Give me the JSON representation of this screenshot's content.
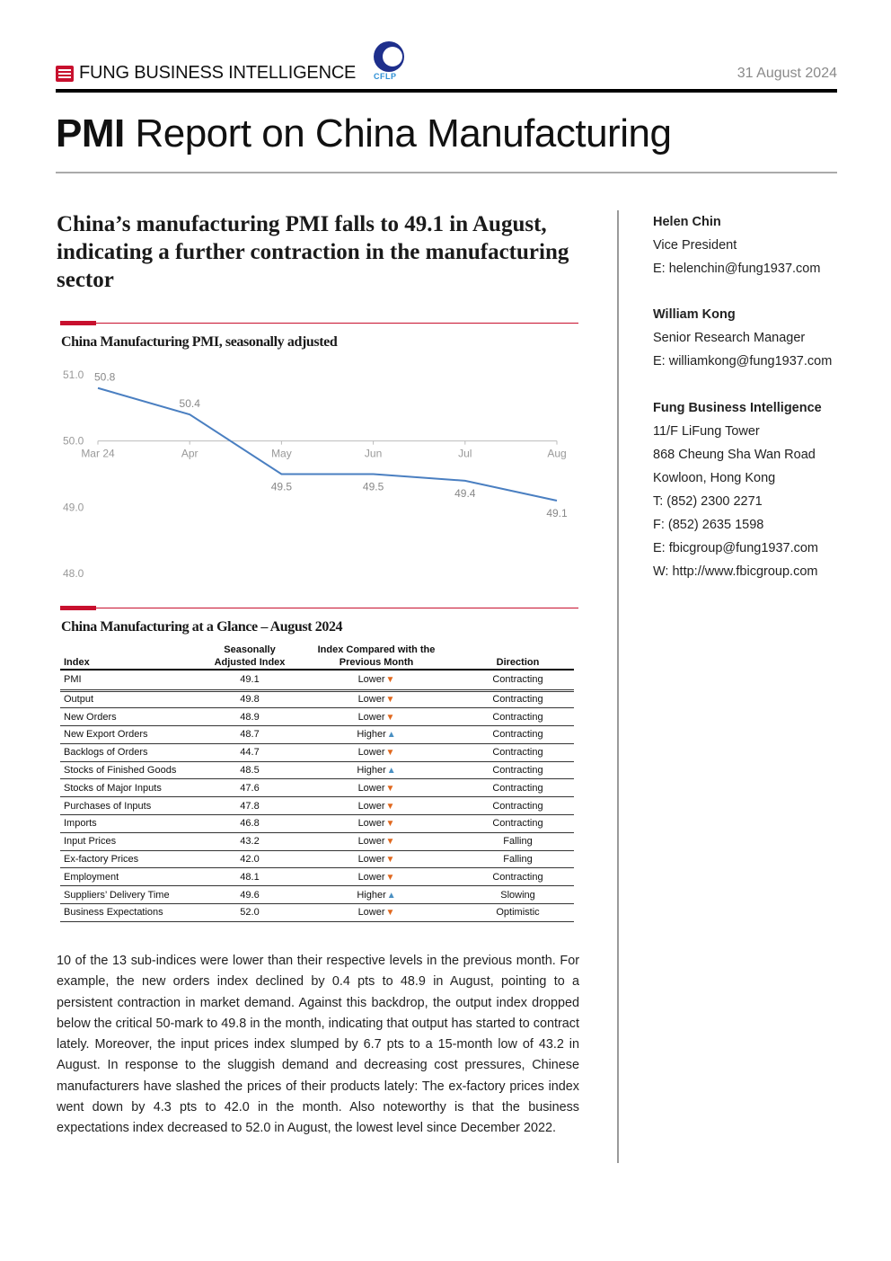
{
  "header": {
    "brand": "FUNG BUSINESS INTELLIGENCE",
    "partner_logo_text": "CFLP",
    "date": "31 August 2024"
  },
  "title": {
    "bold": "PMI",
    "rest": " Report on China Manufacturing"
  },
  "headline": "China’s manufacturing PMI falls to 49.1 in August, indicating a further contraction in the manufacturing sector",
  "chart_section_title": "China Manufacturing PMI, seasonally adjusted",
  "chart_data": {
    "type": "line",
    "title": "China Manufacturing PMI, seasonally adjusted",
    "categories": [
      "Mar 24",
      "Apr",
      "May",
      "Jun",
      "Jul",
      "Aug"
    ],
    "values": [
      50.8,
      50.4,
      49.5,
      49.5,
      49.4,
      49.1
    ],
    "data_labels": [
      "50.8",
      "50.4",
      "49.5",
      "49.5",
      "49.4",
      "49.1"
    ],
    "y_ticks": [
      "51.0",
      "50.0",
      "49.0",
      "48.0"
    ],
    "ylim": [
      48.0,
      51.0
    ],
    "x_axis_at": 50.0,
    "grid": false,
    "legend": "none",
    "color": "#4a7fc1"
  },
  "table_section_title": "China Manufacturing at a Glance – August 2024",
  "table": {
    "headers": {
      "index": "Index",
      "sa_line1": "Seasonally",
      "sa_line2": "Adjusted Index",
      "cmp_line1": "Index Compared with the",
      "cmp_line2": "Previous Month",
      "direction": "Direction"
    },
    "arrow_colors": {
      "down": "#e0681e",
      "up": "#4a90c2"
    },
    "rows": [
      {
        "index": "PMI",
        "value": "49.1",
        "compare": "Lower",
        "arrow": "down",
        "direction": "Contracting"
      },
      {
        "index": "Output",
        "value": "49.8",
        "compare": "Lower",
        "arrow": "down",
        "direction": "Contracting"
      },
      {
        "index": "New Orders",
        "value": "48.9",
        "compare": "Lower",
        "arrow": "down",
        "direction": "Contracting"
      },
      {
        "index": "New Export Orders",
        "value": "48.7",
        "compare": "Higher",
        "arrow": "up",
        "direction": "Contracting"
      },
      {
        "index": "Backlogs of Orders",
        "value": "44.7",
        "compare": "Lower",
        "arrow": "down",
        "direction": "Contracting"
      },
      {
        "index": "Stocks of Finished Goods",
        "value": "48.5",
        "compare": "Higher",
        "arrow": "up",
        "direction": "Contracting"
      },
      {
        "index": "Stocks of Major Inputs",
        "value": "47.6",
        "compare": "Lower",
        "arrow": "down",
        "direction": "Contracting"
      },
      {
        "index": "Purchases of Inputs",
        "value": "47.8",
        "compare": "Lower",
        "arrow": "down",
        "direction": "Contracting"
      },
      {
        "index": "Imports",
        "value": "46.8",
        "compare": "Lower",
        "arrow": "down",
        "direction": "Contracting"
      },
      {
        "index": "Input Prices",
        "value": "43.2",
        "compare": "Lower",
        "arrow": "down",
        "direction": "Falling"
      },
      {
        "index": "Ex-factory Prices",
        "value": "42.0",
        "compare": "Lower",
        "arrow": "down",
        "direction": "Falling"
      },
      {
        "index": "Employment",
        "value": "48.1",
        "compare": "Lower",
        "arrow": "down",
        "direction": "Contracting"
      },
      {
        "index": "Suppliers’ Delivery Time",
        "value": "49.6",
        "compare": "Higher",
        "arrow": "up",
        "direction": "Slowing"
      },
      {
        "index": "Business Expectations",
        "value": "52.0",
        "compare": "Lower",
        "arrow": "down",
        "direction": "Optimistic"
      }
    ]
  },
  "paragraph": "10 of the 13 sub-indices were lower than their respective levels in the previous month. For example, the new orders index declined by 0.4 pts to 48.9 in August, pointing to a persistent contraction in market demand. Against this backdrop, the output index dropped below the critical 50-mark to 49.8 in the month, indicating that output has started to contract lately. Moreover, the input prices index slumped by 6.7 pts to a 15-month low of 43.2 in August. In response to the sluggish demand and decreasing cost pressures, Chinese manufacturers have slashed the prices of their products lately: The ex-factory prices index went down by 4.3 pts to 42.0 in the month. Also noteworthy is that the business expectations index decreased to 52.0 in August, the lowest level since December 2022.",
  "contacts": [
    {
      "name": "Helen Chin",
      "lines": [
        "Vice President",
        "E: helenchin@fung1937.com"
      ]
    },
    {
      "name": "William Kong",
      "lines": [
        "Senior Research Manager",
        "E: williamkong@fung1937.com"
      ]
    },
    {
      "name": "Fung Business Intelligence",
      "lines": [
        "11/F LiFung Tower",
        "868 Cheung Sha Wan Road",
        "Kowloon, Hong Kong",
        "T: (852) 2300 2271",
        "F: (852) 2635 1598",
        "E: fbicgroup@fung1937.com",
        "W: http://www.fbicgroup.com"
      ]
    }
  ]
}
